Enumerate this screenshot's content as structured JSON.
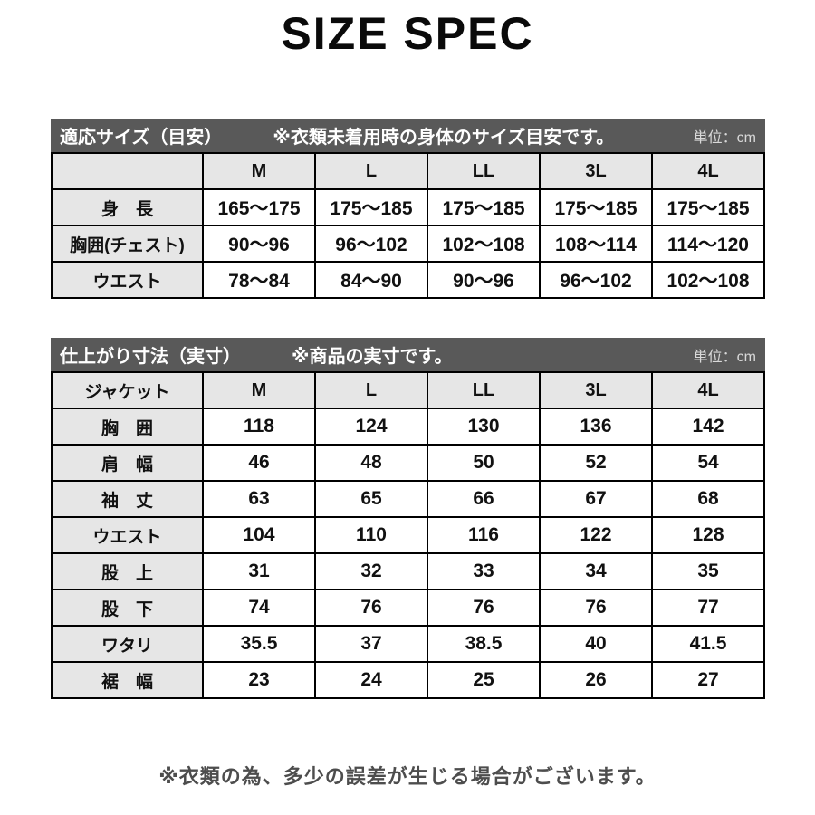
{
  "page": {
    "title": "SIZE SPEC",
    "footer_note": "※衣類の為、多少の誤差が生じる場合がございます。"
  },
  "colors": {
    "header_bar": "#595959",
    "label_cell_bg": "#e6e6e6",
    "border": "#000000",
    "unit_text": "#d9d9d9",
    "footer_text": "#4d4d4d"
  },
  "chart_data": [
    {
      "type": "table",
      "bar_title": "適応サイズ（目安）",
      "bar_note": "※衣類未着用時の身体のサイズ目安です。",
      "unit_label": "単位：cm",
      "corner_label": "",
      "columns": [
        "M",
        "L",
        "LL",
        "3L",
        "4L"
      ],
      "rows": [
        {
          "label": "身　長",
          "values": [
            "165〜175",
            "175〜185",
            "175〜185",
            "175〜185",
            "175〜185"
          ]
        },
        {
          "label": "胸囲(チェスト)",
          "values": [
            "90〜96",
            "96〜102",
            "102〜108",
            "108〜114",
            "114〜120"
          ]
        },
        {
          "label": "ウエスト",
          "values": [
            "78〜84",
            "84〜90",
            "90〜96",
            "96〜102",
            "102〜108"
          ]
        }
      ]
    },
    {
      "type": "table",
      "bar_title": "仕上がり寸法（実寸）",
      "bar_note": "※商品の実寸です。",
      "unit_label": "単位：cm",
      "corner_label": "ジャケット",
      "columns": [
        "M",
        "L",
        "LL",
        "3L",
        "4L"
      ],
      "rows": [
        {
          "label": "胸　囲",
          "values": [
            "118",
            "124",
            "130",
            "136",
            "142"
          ]
        },
        {
          "label": "肩　幅",
          "values": [
            "46",
            "48",
            "50",
            "52",
            "54"
          ]
        },
        {
          "label": "袖　丈",
          "values": [
            "63",
            "65",
            "66",
            "67",
            "68"
          ]
        },
        {
          "label": "ウエスト",
          "values": [
            "104",
            "110",
            "116",
            "122",
            "128"
          ]
        },
        {
          "label": "股　上",
          "values": [
            "31",
            "32",
            "33",
            "34",
            "35"
          ]
        },
        {
          "label": "股　下",
          "values": [
            "74",
            "76",
            "76",
            "76",
            "77"
          ]
        },
        {
          "label": "ワタリ",
          "values": [
            "35.5",
            "37",
            "38.5",
            "40",
            "41.5"
          ]
        },
        {
          "label": "裾　幅",
          "values": [
            "23",
            "24",
            "25",
            "26",
            "27"
          ]
        }
      ]
    }
  ]
}
